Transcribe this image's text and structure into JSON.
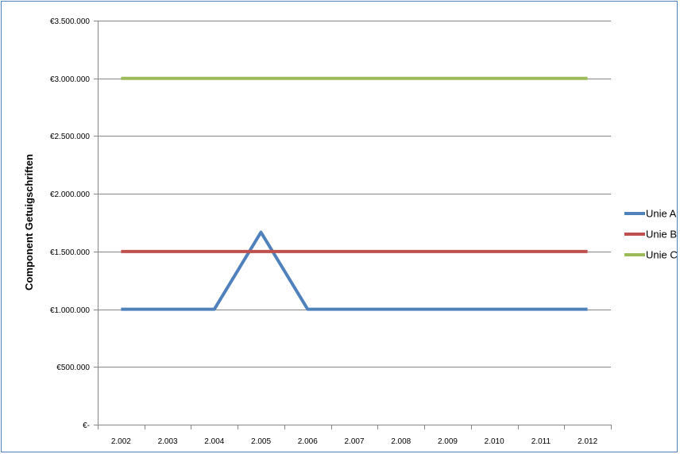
{
  "chart_data": {
    "type": "line",
    "title": "",
    "xlabel": "",
    "ylabel": "Component Getuigschriften",
    "categories": [
      "2.002",
      "2.003",
      "2.004",
      "2.005",
      "2.006",
      "2.007",
      "2.008",
      "2.009",
      "2.010",
      "2.011",
      "2.012"
    ],
    "y_tick_labels": [
      "€-",
      "€500.000",
      "€1.000.000",
      "€1.500.000",
      "€2.000.000",
      "€2.500.000",
      "€3.000.000",
      "€3.500.000"
    ],
    "ylim": [
      0,
      3500000
    ],
    "y_major_unit": 500000,
    "grid": true,
    "legend_position": "right",
    "series": [
      {
        "name": "Unie A",
        "color": "#4f81bd",
        "values": [
          1000000,
          1000000,
          1000000,
          1666667,
          1000000,
          1000000,
          1000000,
          1000000,
          1000000,
          1000000,
          1000000
        ]
      },
      {
        "name": "Unie B",
        "color": "#c0504d",
        "values": [
          1500000,
          1500000,
          1500000,
          1500000,
          1500000,
          1500000,
          1500000,
          1500000,
          1500000,
          1500000,
          1500000
        ]
      },
      {
        "name": "Unie C",
        "color": "#9bbb59",
        "values": [
          3000000,
          3000000,
          3000000,
          3000000,
          3000000,
          3000000,
          3000000,
          3000000,
          3000000,
          3000000,
          3000000
        ]
      }
    ]
  }
}
